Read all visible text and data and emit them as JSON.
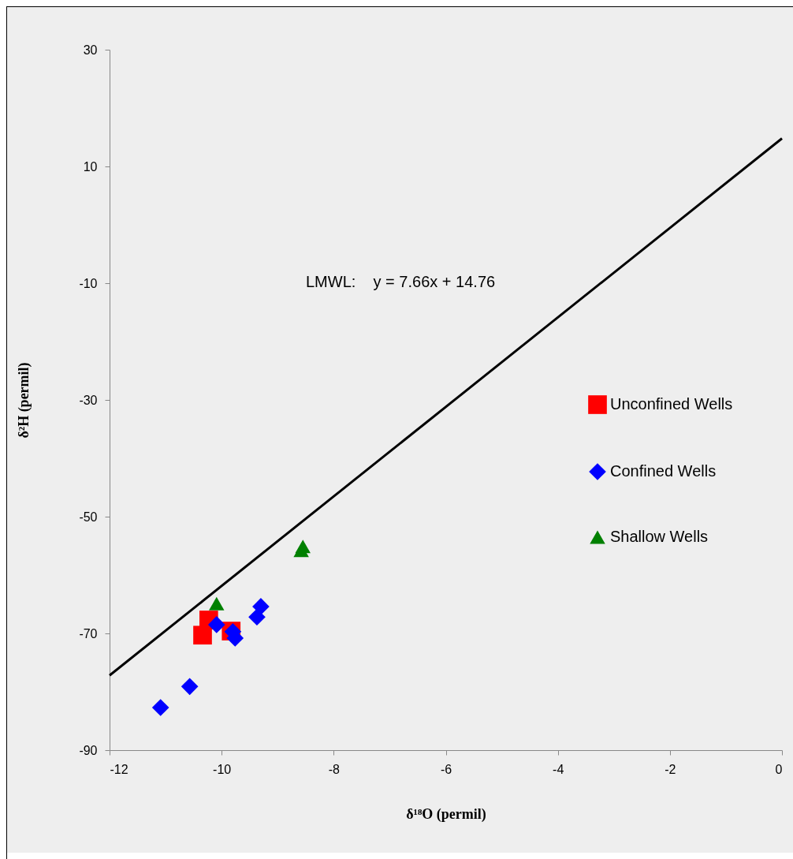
{
  "chart_data": {
    "type": "scatter",
    "xlabel": "δ¹⁸O (permil)",
    "ylabel": "δ²H (permil)",
    "xlim": [
      -12,
      0
    ],
    "xticks": [
      -12,
      -10,
      -8,
      -6,
      -4,
      -2,
      0
    ],
    "ylim": [
      -90,
      30
    ],
    "yticks": [
      -90,
      -70,
      -50,
      -30,
      -10,
      10,
      30
    ],
    "grid": false,
    "legend": "right",
    "annotations": [
      "LMWL:    y = 7.66x + 14.76"
    ],
    "series": [
      {
        "name": "Unconfined Wells",
        "marker": "square",
        "color": "#ff0000",
        "x": [
          -10.23,
          -10.34,
          -9.83
        ],
        "values": [
          -67.7,
          -70.3,
          -69.6
        ]
      },
      {
        "name": "Confined Wells",
        "marker": "diamond",
        "color": "#0000ff",
        "x": [
          -9.3,
          -9.37,
          -10.09,
          -9.8,
          -9.76,
          -10.57,
          -11.09
        ],
        "values": [
          -65.4,
          -67.2,
          -68.5,
          -69.7,
          -70.8,
          -79.1,
          -82.7
        ]
      },
      {
        "name": "Shallow Wells",
        "marker": "triangle",
        "color": "#008000",
        "x": [
          -10.09,
          -8.55,
          -8.58
        ],
        "values": [
          -64.9,
          -55.1,
          -55.8
        ]
      },
      {
        "type": "line",
        "marker": "none",
        "line_style": "solid",
        "color": "#000000",
        "x": [
          -12,
          0
        ],
        "values": [
          -77.2,
          14.8
        ]
      }
    ]
  }
}
